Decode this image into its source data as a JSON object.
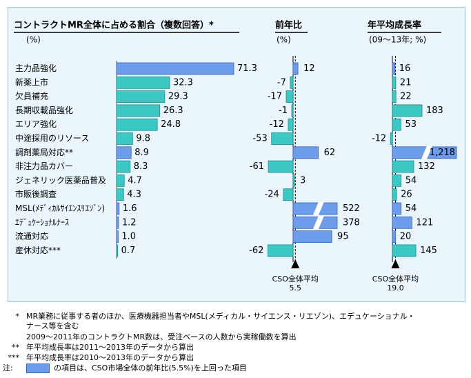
{
  "chart_data": {
    "type": "bar",
    "panels": [
      {
        "key": "share",
        "title": "コントラクトMR全体に占める割合（複数回答）*",
        "unit": "(%)"
      },
      {
        "key": "yoy",
        "title": "前年比",
        "unit": "(%)"
      },
      {
        "key": "cagr",
        "title": "年平均成長率",
        "unit": "(09〜13年; %)"
      }
    ],
    "categories": [
      "主力品強化",
      "新薬上市",
      "欠員補充",
      "長期収載品強化",
      "エリア強化",
      "中途採用のリソース",
      "調剤薬局対応**",
      "非注力品カバー",
      "ジェネリック医薬品普及",
      "市販後調査",
      "MSL(ﾒﾃﾞｨｶﾙｻｲｴﾝｽﾘｴｿﾞﾝ)",
      "ｴﾃﾞｭｹｰｼｮﾅﾙﾅｰｽ",
      "流通対応",
      "産休対応***"
    ],
    "series": [
      {
        "key": "share",
        "values": [
          71.3,
          32.3,
          29.3,
          26.3,
          24.8,
          9.8,
          8.9,
          8.3,
          4.7,
          4.3,
          1.6,
          1.2,
          1.0,
          0.7
        ],
        "labels": [
          "71.3",
          "32.3",
          "29.3",
          "26.3",
          "24.8",
          "9.8",
          "8.9",
          "8.3",
          "4.7",
          "4.3",
          "1.6",
          "1.2",
          "1.0",
          "0.7"
        ]
      },
      {
        "key": "yoy",
        "values": [
          12,
          -7,
          -17,
          -1,
          -12,
          -53,
          62,
          -61,
          3,
          -24,
          522,
          378,
          95,
          -62
        ],
        "labels": [
          "12",
          "-7",
          "-17",
          "-1",
          "-12",
          "-53",
          "62",
          "-61",
          "3",
          "-24",
          "522",
          "378",
          "95",
          "-62"
        ],
        "broken": [
          false,
          false,
          false,
          false,
          false,
          false,
          false,
          false,
          false,
          false,
          true,
          true,
          false,
          false
        ]
      },
      {
        "key": "cagr",
        "values": [
          16,
          21,
          22,
          183,
          53,
          -12,
          1218,
          132,
          54,
          26,
          54,
          121,
          20,
          145
        ],
        "labels": [
          "16",
          "21",
          "22",
          "183",
          "53",
          "-12",
          "1,218",
          "132",
          "54",
          "26",
          "54",
          "121",
          "20",
          "145"
        ],
        "broken": [
          false,
          false,
          false,
          false,
          false,
          false,
          true,
          false,
          false,
          false,
          false,
          false,
          false,
          false
        ]
      }
    ],
    "highlighted": [
      true,
      false,
      false,
      false,
      false,
      false,
      true,
      false,
      false,
      false,
      true,
      true,
      true,
      false
    ],
    "references": [
      {
        "label": "CSO全体平均",
        "value": 5.5,
        "value_label": "5.5"
      },
      {
        "label": "CSO全体平均",
        "value": 19.0,
        "value_label": "19.0"
      }
    ],
    "colors": {
      "normal": "#3cc8c4",
      "highlight": "#6d9ceb",
      "normal_border": "#1e8c88",
      "highlight_border": "#3a64b6",
      "panel_bg": "#e9f4fb"
    }
  },
  "notes": {
    "asterisk1_mark": "*",
    "asterisk1_line1": "MR業務に従事する者のほか、医療機器担当者やMSL(メディカル・サイエンス・リエゾン)、エデュケーショナル・",
    "asterisk1_line2": "ナース等を含む",
    "asterisk1_line3": "2009〜2011年のコントラクトMR数は、受注ベースの人数から実稼働数を算出",
    "asterisk2_mark": "**",
    "asterisk2_text": "年平均成長率は2011〜2013年のデータから算出",
    "asterisk3_mark": "***",
    "asterisk3_text": "年平均成長率は2010〜2013年のデータから算出",
    "legend_prefix": "注:",
    "legend_text": "の項目は、CSO市場全体の前年比(5.5%)を上回った項目"
  }
}
